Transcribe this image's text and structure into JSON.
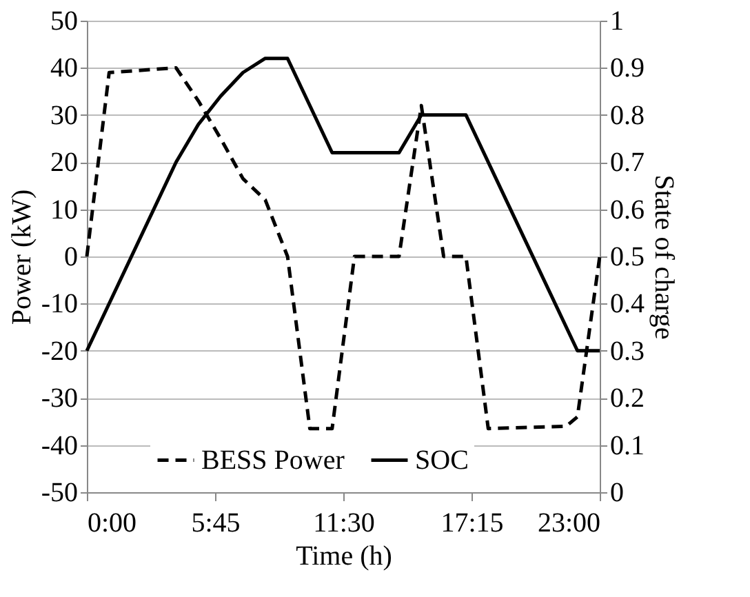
{
  "chart_data": {
    "type": "line",
    "xlabel": "Time (h)",
    "ylabel": "Power (kW)",
    "y2label": "State of charge",
    "x": [
      0,
      1,
      4,
      5,
      6,
      7,
      8,
      9,
      10,
      11,
      12,
      14,
      15,
      16,
      17,
      18,
      21.5,
      22,
      23
    ],
    "series": [
      {
        "name": "BESS Power",
        "color": "#000000",
        "line_style": "dashed",
        "values": [
          0,
          39,
          40,
          33,
          25,
          16.5,
          12,
          0,
          -36.5,
          -36.5,
          0,
          0,
          32,
          0,
          0,
          -36.5,
          -36,
          -34,
          0
        ]
      },
      {
        "name": "SOC",
        "color": "#000000",
        "line_style": "solid",
        "axis": "y2",
        "x": [
          0,
          4,
          5,
          6,
          7,
          8,
          9,
          11,
          14,
          15,
          17,
          22,
          23
        ],
        "values": [
          0.3,
          0.7,
          0.78,
          0.84,
          0.89,
          0.92,
          0.92,
          0.72,
          0.72,
          0.8,
          0.8,
          0.3,
          0.3
        ]
      }
    ],
    "xlim": [
      0,
      23
    ],
    "xticks": [
      {
        "value": 0,
        "label": "0:00"
      },
      {
        "value": 5.75,
        "label": "5:45"
      },
      {
        "value": 11.5,
        "label": "11:30"
      },
      {
        "value": 17.25,
        "label": "17:15"
      },
      {
        "value": 23,
        "label": "23:00"
      }
    ],
    "ylim": [
      -50,
      50
    ],
    "yticks": [
      -50,
      -40,
      -30,
      -20,
      -10,
      0,
      10,
      20,
      30,
      40,
      50
    ],
    "y2lim": [
      0,
      1
    ],
    "y2ticks": [
      0,
      0.1,
      0.2,
      0.3,
      0.4,
      0.5,
      0.6,
      0.7,
      0.8,
      0.9,
      1
    ],
    "grid": "y",
    "legend": "bottom"
  }
}
